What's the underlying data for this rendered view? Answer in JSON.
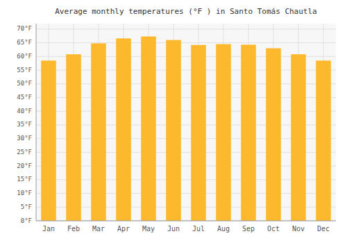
{
  "chart_data": {
    "type": "bar",
    "title": "Average monthly temperatures (°F ) in Santo Tomás Chautla",
    "categories": [
      "Jan",
      "Feb",
      "Mar",
      "Apr",
      "May",
      "Jun",
      "Jul",
      "Aug",
      "Sep",
      "Oct",
      "Nov",
      "Dec"
    ],
    "values": [
      58.5,
      60.8,
      64.8,
      66.6,
      67.3,
      66.0,
      64.2,
      64.5,
      64.3,
      63.0,
      60.8,
      58.5
    ],
    "color": "#FDB92E",
    "ylim": [
      0,
      72
    ],
    "yticks": [
      {
        "value": 0,
        "label": "0°F"
      },
      {
        "value": 5,
        "label": "5°F"
      },
      {
        "value": 10,
        "label": "10°F"
      },
      {
        "value": 15,
        "label": "15°F"
      },
      {
        "value": 20,
        "label": "20°F"
      },
      {
        "value": 25,
        "label": "25°F"
      },
      {
        "value": 30,
        "label": "30°F"
      },
      {
        "value": 35,
        "label": "35°F"
      },
      {
        "value": 40,
        "label": "40°F"
      },
      {
        "value": 45,
        "label": "45°F"
      },
      {
        "value": 50,
        "label": "50°F"
      },
      {
        "value": 55,
        "label": "55°F"
      },
      {
        "value": 60,
        "label": "60°F"
      },
      {
        "value": 65,
        "label": "65°F"
      },
      {
        "value": 70,
        "label": "70°F"
      }
    ],
    "grid": true
  }
}
